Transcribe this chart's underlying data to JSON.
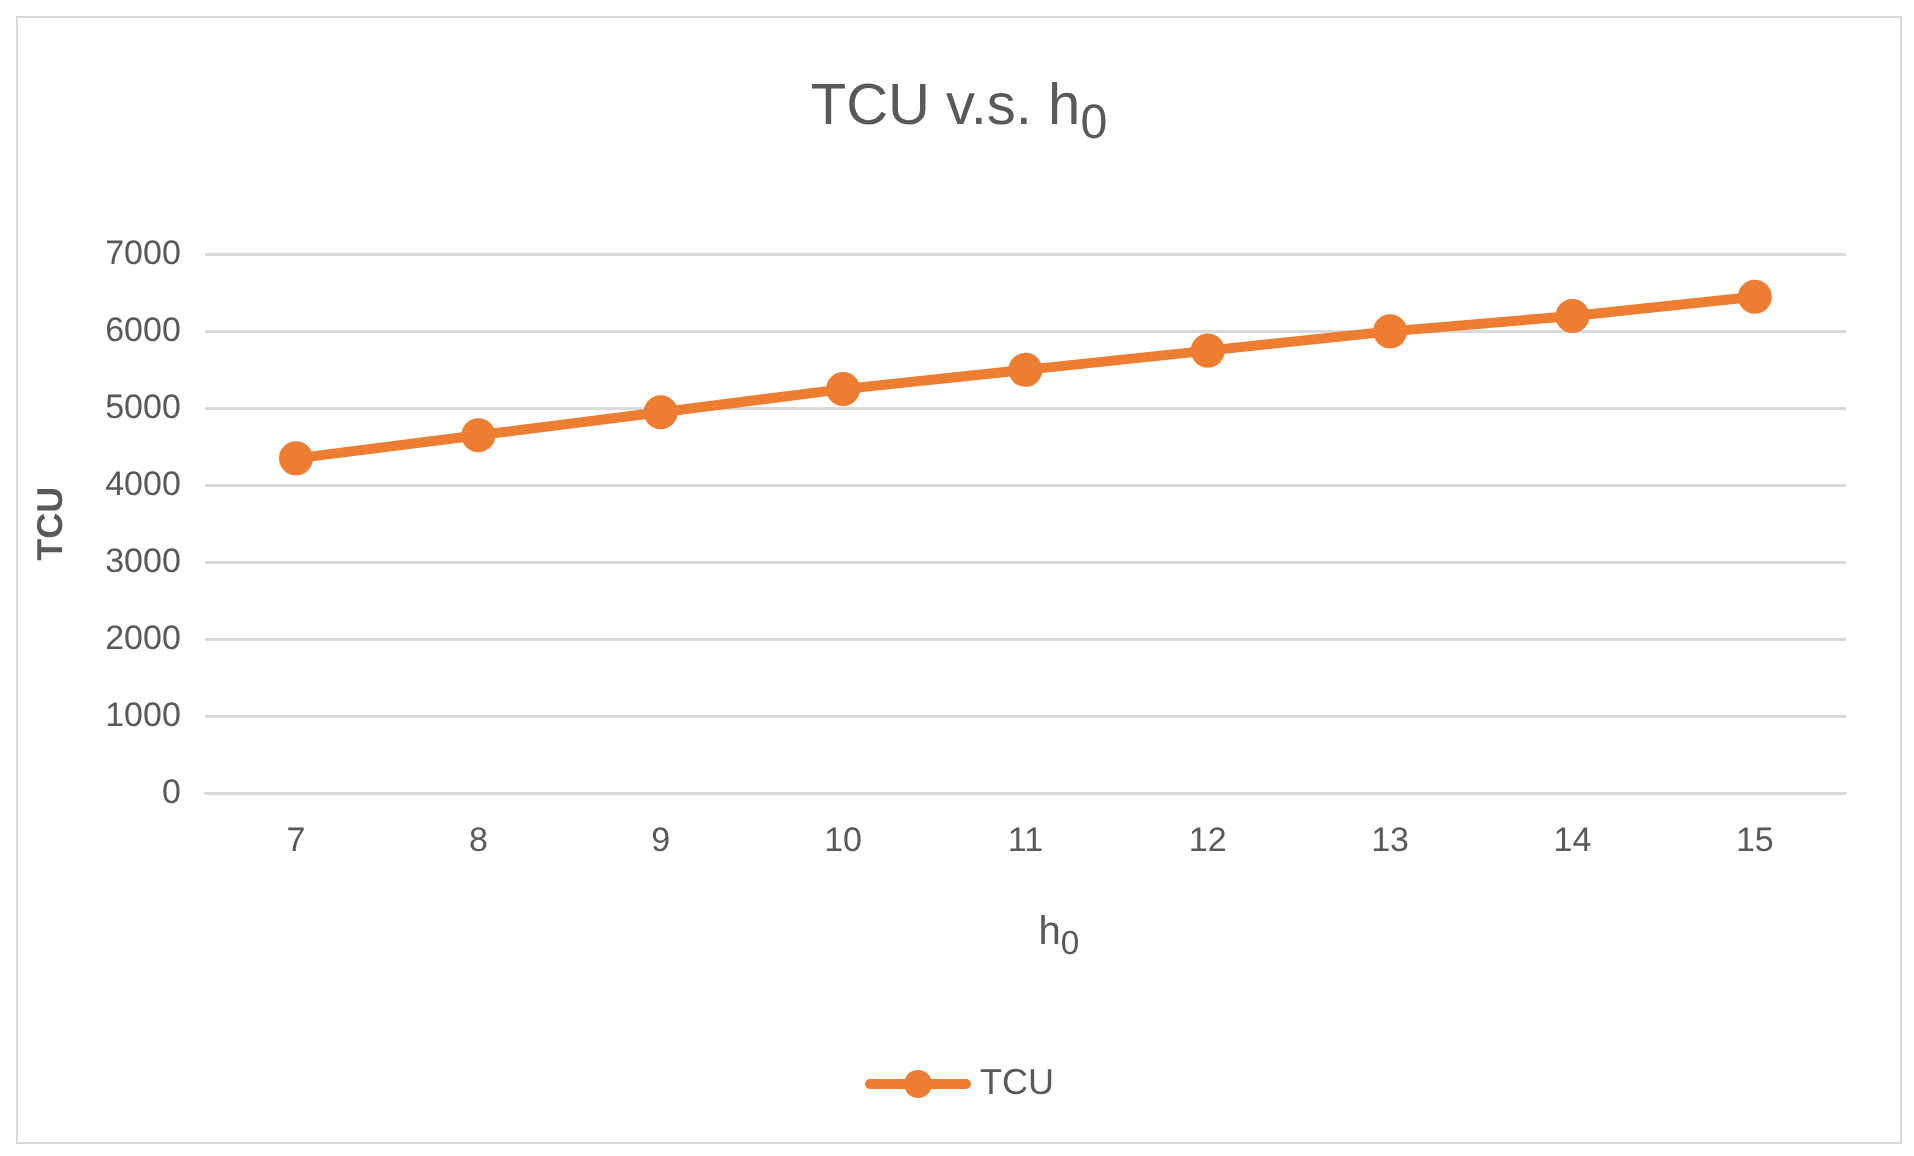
{
  "chart_data": {
    "type": "line",
    "title": "TCU v.s. h$_{0}$",
    "xlabel": "h$_{0}$",
    "ylabel": "TCU",
    "categories": [
      "7",
      "8",
      "9",
      "10",
      "11",
      "12",
      "13",
      "14",
      "15"
    ],
    "series": [
      {
        "name": "TCU",
        "color": "#ed7d31",
        "values": [
          4350,
          4650,
          4950,
          5250,
          5500,
          5750,
          6000,
          6200,
          6450
        ]
      }
    ],
    "ylim": [
      0,
      7000
    ],
    "yticks": [
      0,
      1000,
      2000,
      3000,
      4000,
      5000,
      6000,
      7000
    ],
    "grid": "y",
    "legend": "bottom",
    "marker": "circle",
    "line_style": "solid"
  }
}
